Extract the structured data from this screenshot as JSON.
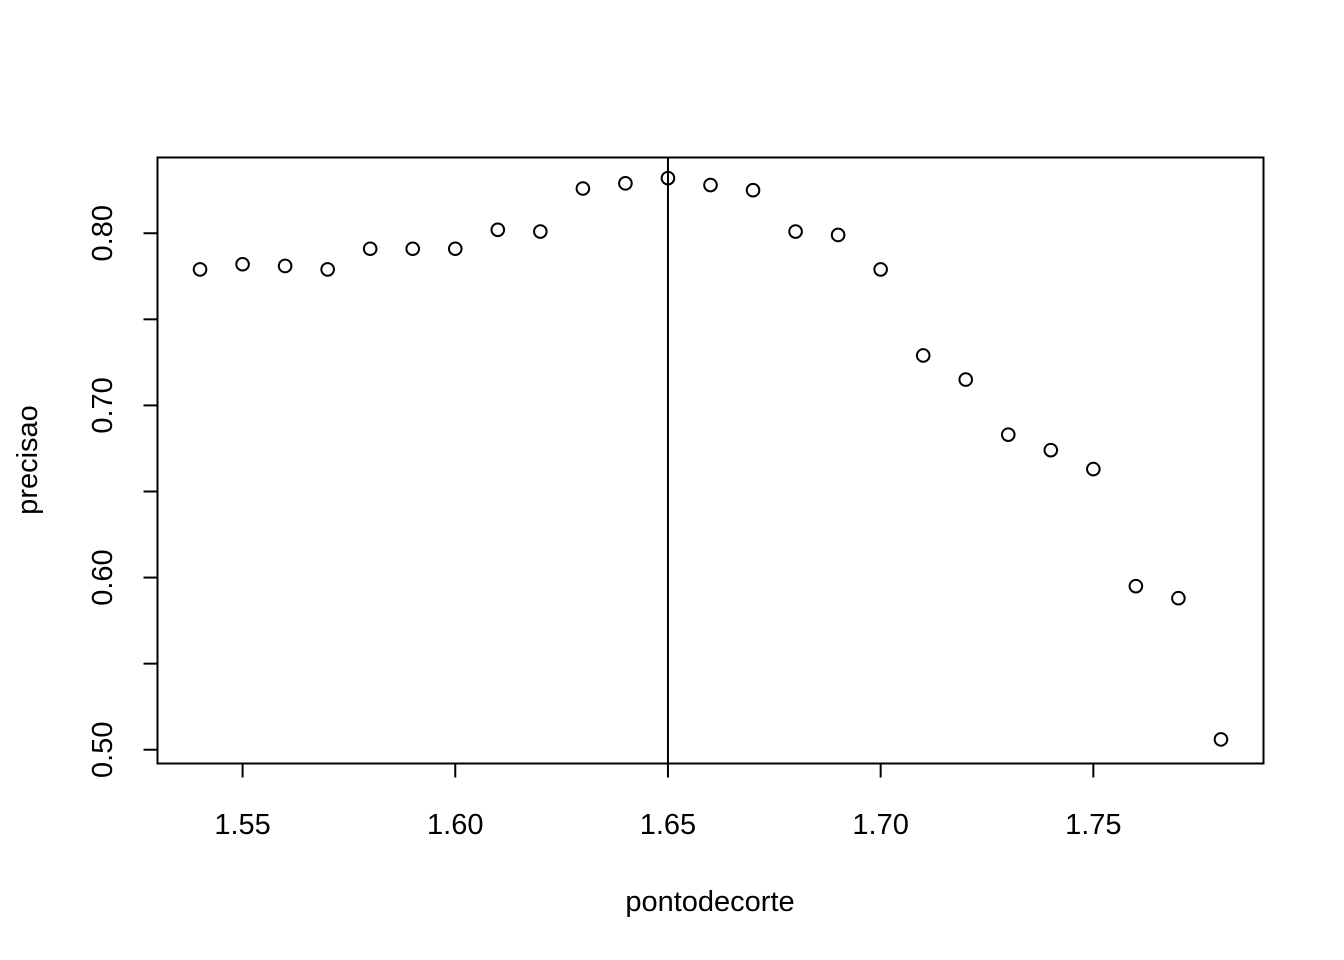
{
  "chart_data": {
    "type": "scatter",
    "title": "",
    "xlabel": "pontodecorte",
    "ylabel": "precisao",
    "xlim": [
      1.53,
      1.79
    ],
    "ylim": [
      0.492,
      0.844
    ],
    "x_ticks": [
      1.55,
      1.6,
      1.65,
      1.7,
      1.75
    ],
    "x_tick_labels": [
      "1.55",
      "1.60",
      "1.65",
      "1.70",
      "1.75"
    ],
    "y_ticks": [
      0.5,
      0.55,
      0.6,
      0.65,
      0.7,
      0.75,
      0.8
    ],
    "y_tick_labels": [
      "0.50",
      "",
      "0.60",
      "",
      "0.70",
      "",
      "0.80"
    ],
    "vline": 1.65,
    "points": [
      {
        "x": 1.54,
        "y": 0.779
      },
      {
        "x": 1.55,
        "y": 0.782
      },
      {
        "x": 1.56,
        "y": 0.781
      },
      {
        "x": 1.57,
        "y": 0.779
      },
      {
        "x": 1.58,
        "y": 0.791
      },
      {
        "x": 1.59,
        "y": 0.791
      },
      {
        "x": 1.6,
        "y": 0.791
      },
      {
        "x": 1.61,
        "y": 0.802
      },
      {
        "x": 1.62,
        "y": 0.801
      },
      {
        "x": 1.63,
        "y": 0.826
      },
      {
        "x": 1.64,
        "y": 0.829
      },
      {
        "x": 1.65,
        "y": 0.832
      },
      {
        "x": 1.66,
        "y": 0.828
      },
      {
        "x": 1.67,
        "y": 0.825
      },
      {
        "x": 1.68,
        "y": 0.801
      },
      {
        "x": 1.69,
        "y": 0.799
      },
      {
        "x": 1.7,
        "y": 0.779
      },
      {
        "x": 1.71,
        "y": 0.729
      },
      {
        "x": 1.72,
        "y": 0.715
      },
      {
        "x": 1.73,
        "y": 0.683
      },
      {
        "x": 1.74,
        "y": 0.674
      },
      {
        "x": 1.75,
        "y": 0.663
      },
      {
        "x": 1.76,
        "y": 0.595
      },
      {
        "x": 1.77,
        "y": 0.588
      },
      {
        "x": 1.78,
        "y": 0.506
      }
    ],
    "grid": false,
    "legend": "none",
    "colors": {
      "points": "#000000",
      "axes": "#000000",
      "vline": "#000000"
    }
  }
}
